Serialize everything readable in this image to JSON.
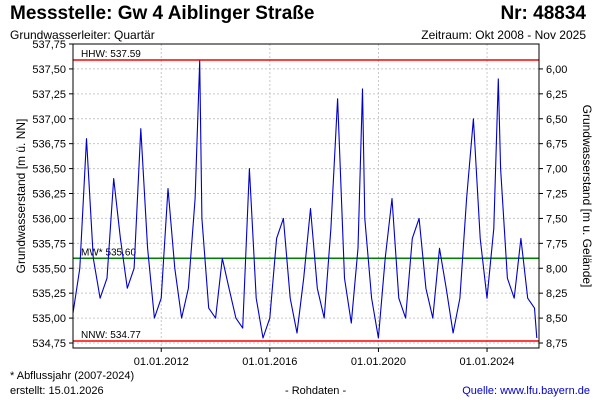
{
  "header": {
    "title": "Messstelle: Gw 4 Aiblinger Straße",
    "number": "Nr: 48834",
    "aquifer": "Grundwasserleiter: Quartär",
    "period": "Zeitraum: Okt 2008 - Nov 2025"
  },
  "footer": {
    "note": "* Abflussjahr (2007-2024)",
    "created": "erstellt:  15.01.2026",
    "raw": "- Rohdaten -",
    "source": "Quelle: www.lfu.bayern.de"
  },
  "colors": {
    "series": "#0000cc",
    "extreme_lines": "#ff0000",
    "mean_line": "#008000",
    "grid": "#c8c8c8"
  },
  "chart_data": {
    "type": "line",
    "xlabel": "",
    "ylabel": "Grundwasserstand [m ü. NN]",
    "ylabel_right": "Grundwasserstand [m u. Gelände]",
    "xlim": [
      "2008-10-01",
      "2025-11-30"
    ],
    "ylim": [
      534.7,
      537.75
    ],
    "ylim_right": [
      5.75,
      8.8
    ],
    "x_ticks": [
      "01.01.2012",
      "01.01.2016",
      "01.01.2020",
      "01.01.2024"
    ],
    "y_ticks": [
      "534,75",
      "535,00",
      "535,25",
      "535,50",
      "535,75",
      "536,00",
      "536,25",
      "536,50",
      "536,75",
      "537,00",
      "537,25",
      "537,50",
      "537,75"
    ],
    "y_ticks_right": [
      "6,00",
      "6,25",
      "6,50",
      "6,75",
      "7,00",
      "7,25",
      "7,50",
      "7,75",
      "8,00",
      "8,25",
      "8,50",
      "8,75"
    ],
    "grid": true,
    "reference_lines": [
      {
        "label": "HHW: 537.59",
        "value": 537.59,
        "color": "#ff0000"
      },
      {
        "label": "MW* 535.60",
        "value": 535.6,
        "color": "#008000"
      },
      {
        "label": "NNW: 534.77",
        "value": 534.77,
        "color": "#ff0000"
      }
    ],
    "series": [
      {
        "x": [
          "2008-10",
          "2009-01",
          "2009-04",
          "2009-07",
          "2009-10",
          "2010-01",
          "2010-04",
          "2010-07",
          "2010-10",
          "2011-01",
          "2011-04",
          "2011-07",
          "2011-10",
          "2012-01",
          "2012-04",
          "2012-07",
          "2012-10",
          "2013-01",
          "2013-04",
          "2013-06",
          "2013-07",
          "2013-10",
          "2014-01",
          "2014-04",
          "2014-07",
          "2014-10",
          "2015-01",
          "2015-04",
          "2015-07",
          "2015-10",
          "2016-01",
          "2016-04",
          "2016-07",
          "2016-10",
          "2017-01",
          "2017-04",
          "2017-07",
          "2017-10",
          "2018-01",
          "2018-04",
          "2018-07",
          "2018-10",
          "2019-01",
          "2019-04",
          "2019-06",
          "2019-07",
          "2019-10",
          "2020-01",
          "2020-04",
          "2020-07",
          "2020-10",
          "2021-01",
          "2021-04",
          "2021-07",
          "2021-10",
          "2022-01",
          "2022-04",
          "2022-07",
          "2022-10",
          "2023-01",
          "2023-04",
          "2023-07",
          "2023-10",
          "2024-01",
          "2024-04",
          "2024-06",
          "2024-07",
          "2024-10",
          "2025-01",
          "2025-04",
          "2025-07",
          "2025-10",
          "2025-11"
        ],
        "values": [
          535.05,
          535.5,
          536.8,
          535.6,
          535.2,
          535.4,
          536.4,
          535.8,
          535.3,
          535.5,
          536.9,
          535.7,
          535.0,
          535.2,
          536.3,
          535.5,
          535.0,
          535.3,
          536.2,
          537.58,
          536.0,
          535.1,
          535.0,
          535.6,
          535.3,
          535.0,
          534.9,
          536.5,
          535.2,
          534.8,
          535.0,
          535.8,
          536.0,
          535.2,
          534.85,
          535.4,
          536.1,
          535.3,
          535.0,
          535.9,
          537.2,
          535.4,
          534.95,
          535.7,
          537.3,
          536.0,
          535.2,
          534.8,
          535.6,
          536.2,
          535.2,
          535.0,
          535.8,
          536.0,
          535.3,
          535.0,
          535.7,
          535.3,
          534.85,
          535.2,
          536.2,
          537.0,
          535.8,
          535.2,
          535.9,
          537.4,
          536.5,
          535.4,
          535.2,
          535.8,
          535.2,
          535.1,
          534.8
        ]
      }
    ]
  }
}
